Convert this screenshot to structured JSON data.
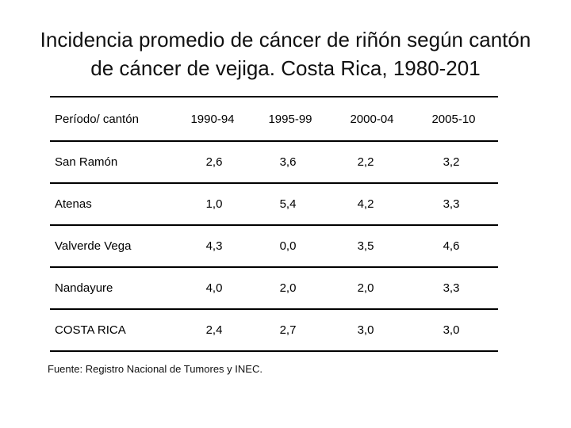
{
  "slide": {
    "title_line1": "Incidencia promedio de cáncer de riñón según cantón",
    "title_line2": "de cáncer de  vejiga. Costa Rica, 1980-201",
    "source": "Fuente: Registro Nacional de Tumores y INEC."
  },
  "table": {
    "headers": [
      "Período/ cantón",
      "1990-94",
      "1995-99",
      "2000-04",
      "2005-10"
    ],
    "rows": [
      [
        "San Ramón",
        "2,6",
        "3,6",
        "2,2",
        "3,2"
      ],
      [
        "Atenas",
        "1,0",
        "5,4",
        "4,2",
        "3,3"
      ],
      [
        "Valverde Vega",
        "4,3",
        "0,0",
        "3,5",
        "4,6"
      ],
      [
        "Nandayure",
        "4,0",
        "2,0",
        "2,0",
        "3,3"
      ],
      [
        "COSTA RICA",
        "2,4",
        "2,7",
        "3,0",
        "3,0"
      ]
    ]
  }
}
